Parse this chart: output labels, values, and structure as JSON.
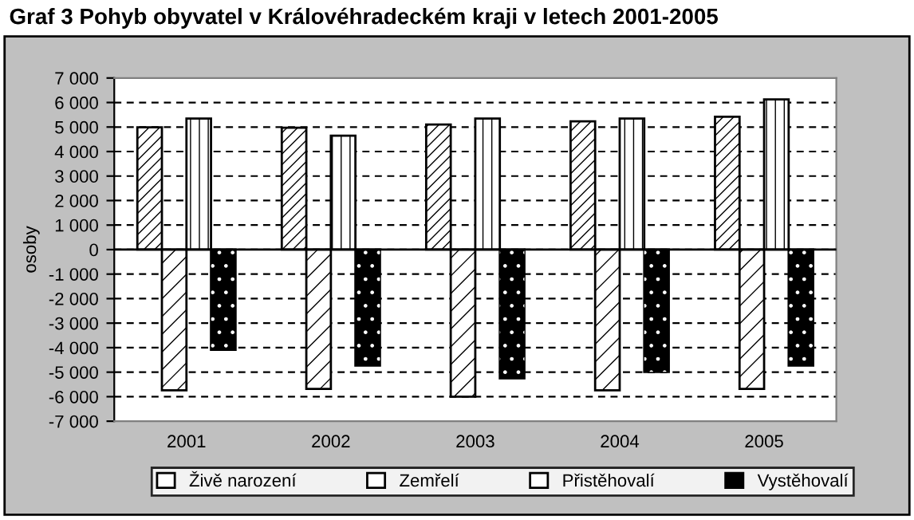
{
  "chart_data": {
    "type": "bar",
    "title": "Graf 3 Pohyb obyvatel v Královéhradeckém kraji v letech 2001-2005",
    "ylabel": "osoby",
    "categories": [
      "2001",
      "2002",
      "2003",
      "2004",
      "2005"
    ],
    "series": [
      {
        "name": "Živě narození",
        "color": "#ffffff",
        "values": [
          4990,
          4970,
          5100,
          5230,
          5420
        ]
      },
      {
        "name": "Zemřelí",
        "color": "#ffffff",
        "values": [
          -5740,
          -5680,
          -6000,
          -5740,
          -5680
        ]
      },
      {
        "name": "Přistěhovalí",
        "color": "#ffffff",
        "values": [
          5350,
          4650,
          5350,
          5350,
          6130
        ]
      },
      {
        "name": "Vystěhovalí",
        "color": "#000000",
        "values": [
          -4090,
          -4730,
          -5250,
          -4990,
          -4730
        ]
      }
    ],
    "ylim": [
      -7000,
      7000
    ],
    "yticks": [
      {
        "value": -7000,
        "label": "-7 000"
      },
      {
        "value": -6000,
        "label": "-6 000"
      },
      {
        "value": -5000,
        "label": "-5 000"
      },
      {
        "value": -4000,
        "label": "-4 000"
      },
      {
        "value": -3000,
        "label": "-3 000"
      },
      {
        "value": -2000,
        "label": "-2 000"
      },
      {
        "value": -1000,
        "label": "-1 000"
      },
      0,
      {
        "value": 1000,
        "label": "1 000"
      },
      {
        "value": 2000,
        "label": "2 000"
      },
      {
        "value": 3000,
        "label": "3 000"
      },
      {
        "value": 4000,
        "label": "4 000"
      },
      {
        "value": 5000,
        "label": "5 000"
      },
      {
        "value": 6000,
        "label": "6 000"
      },
      {
        "value": 7000,
        "label": "7 000"
      }
    ],
    "grid": "y",
    "legend": "bottom"
  }
}
